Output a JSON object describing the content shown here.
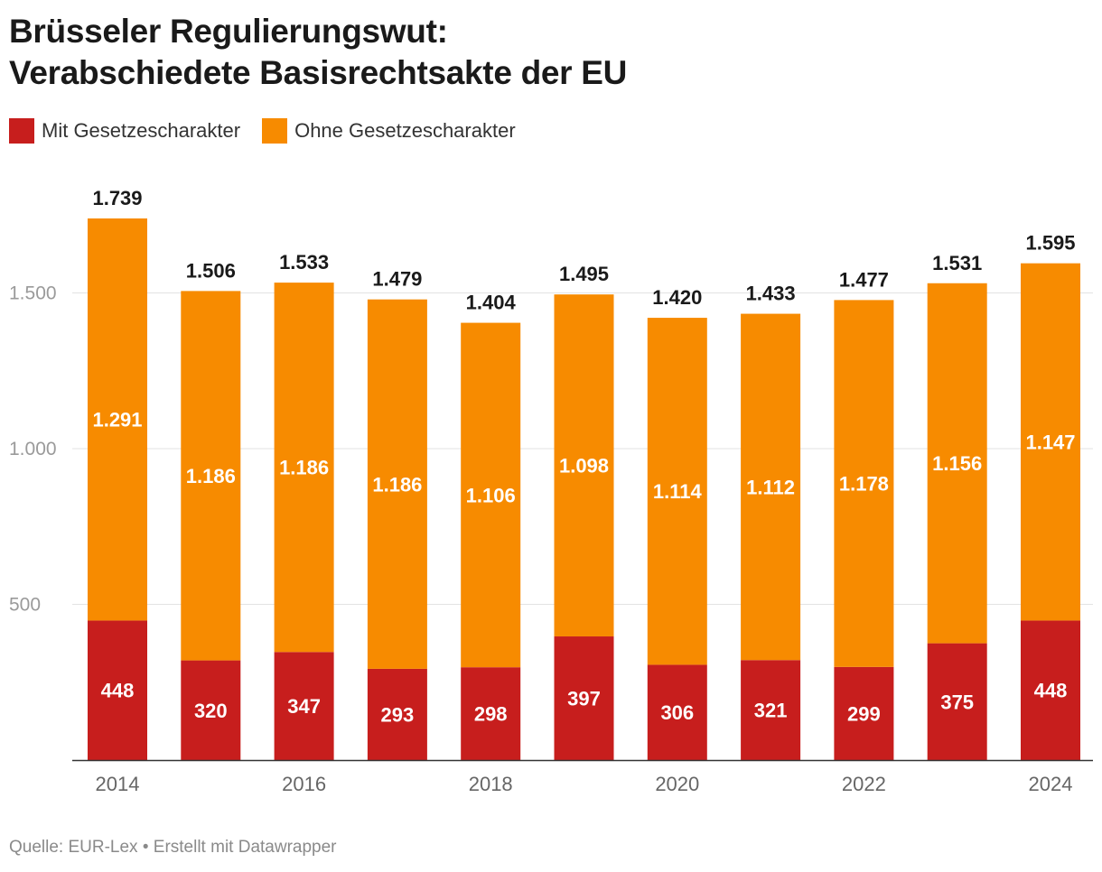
{
  "title": {
    "line1": "Brüsseler Regulierungswut:",
    "line2": "Verabschiedete Basisrechtsakte der EU"
  },
  "footer": "Quelle: EUR-Lex • Erstellt mit Datawrapper",
  "chart_data": {
    "type": "bar",
    "stacked": true,
    "categories": [
      "2014",
      "2015",
      "2016",
      "2017",
      "2018",
      "2019",
      "2020",
      "2021",
      "2022",
      "2023",
      "2024"
    ],
    "x_tick_labels": [
      "2014",
      "2016",
      "2018",
      "2020",
      "2022",
      "2024"
    ],
    "series": [
      {
        "name": "Mit Gesetzescharakter",
        "color": "#c71e1d",
        "values": [
          448,
          320,
          347,
          293,
          298,
          397,
          306,
          321,
          299,
          375,
          448
        ]
      },
      {
        "name": "Ohne Gesetzescharakter",
        "color": "#f78b00",
        "values": [
          1291,
          1186,
          1186,
          1186,
          1106,
          1098,
          1114,
          1112,
          1178,
          1156,
          1147
        ]
      }
    ],
    "totals": [
      1739,
      1506,
      1533,
      1479,
      1404,
      1495,
      1420,
      1433,
      1477,
      1531,
      1595
    ],
    "y_ticks": [
      500,
      1000,
      1500
    ],
    "y_tick_labels": [
      "500",
      "1.000",
      "1.500"
    ],
    "ylim": [
      0,
      1739
    ],
    "grid": true,
    "legend_position": "top-left",
    "number_format": "de-DE"
  }
}
